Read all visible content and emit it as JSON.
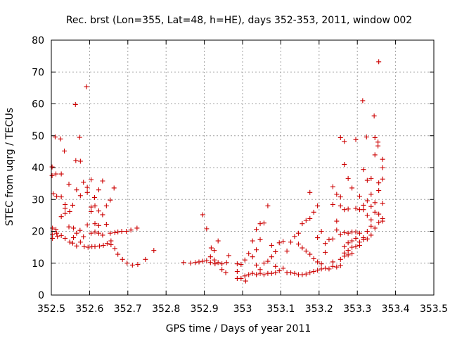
{
  "chart_data": {
    "type": "scatter",
    "title": "Rec. brst (Lon=355, Lat=48, h=HE), days 352-353, 2011, window 002",
    "xlabel": "GPS time / Days of year 2011",
    "ylabel": "STEC from uqrg / TECUs",
    "xlim": [
      352.5,
      353.5
    ],
    "ylim": [
      0,
      80
    ],
    "grid": true,
    "marker": "+",
    "color": "#cc0000",
    "xticks": [
      {
        "value": 352.5,
        "label": "352.5"
      },
      {
        "value": 352.6,
        "label": "352.6"
      },
      {
        "value": 352.7,
        "label": "352.7"
      },
      {
        "value": 352.8,
        "label": "352.8"
      },
      {
        "value": 352.9,
        "label": "352.9"
      },
      {
        "value": 353.0,
        "label": "353"
      },
      {
        "value": 353.1,
        "label": "353.1"
      },
      {
        "value": 353.2,
        "label": "353.2"
      },
      {
        "value": 353.3,
        "label": "353.3"
      },
      {
        "value": 353.4,
        "label": "353.4"
      },
      {
        "value": 353.5,
        "label": "353.5"
      }
    ],
    "yticks": [
      {
        "value": 0,
        "label": "0"
      },
      {
        "value": 10,
        "label": "10"
      },
      {
        "value": 20,
        "label": "20"
      },
      {
        "value": 30,
        "label": "30"
      },
      {
        "value": 40,
        "label": "40"
      },
      {
        "value": 50,
        "label": "50"
      },
      {
        "value": 60,
        "label": "60"
      },
      {
        "value": 70,
        "label": "70"
      },
      {
        "value": 80,
        "label": "80"
      }
    ],
    "points": [
      [
        352.502,
        40.2
      ],
      [
        352.502,
        37.5
      ],
      [
        352.505,
        31.8
      ],
      [
        352.503,
        21.0
      ],
      [
        352.503,
        19.0
      ],
      [
        352.503,
        17.8
      ],
      [
        352.51,
        49.6
      ],
      [
        352.512,
        38.0
      ],
      [
        352.514,
        31.0
      ],
      [
        352.512,
        20.6
      ],
      [
        352.514,
        19.4
      ],
      [
        352.516,
        18.4
      ],
      [
        352.524,
        49.0
      ],
      [
        352.526,
        38.0
      ],
      [
        352.526,
        30.8
      ],
      [
        352.526,
        24.6
      ],
      [
        352.526,
        18.7
      ],
      [
        352.534,
        45.2
      ],
      [
        352.536,
        28.4
      ],
      [
        352.536,
        27.2
      ],
      [
        352.536,
        25.6
      ],
      [
        352.536,
        17.8
      ],
      [
        352.546,
        34.8
      ],
      [
        352.548,
        26.2
      ],
      [
        352.546,
        21.4
      ],
      [
        352.548,
        16.6
      ],
      [
        352.556,
        28.2
      ],
      [
        352.558,
        21.0
      ],
      [
        352.558,
        18.0
      ],
      [
        352.556,
        16.3
      ],
      [
        352.563,
        59.8
      ],
      [
        352.564,
        42.2
      ],
      [
        352.566,
        33.0
      ],
      [
        352.566,
        19.4
      ],
      [
        352.566,
        15.4
      ],
      [
        352.574,
        49.5
      ],
      [
        352.576,
        42.0
      ],
      [
        352.576,
        31.2
      ],
      [
        352.575,
        20.3
      ],
      [
        352.576,
        16.6
      ],
      [
        352.584,
        35.4
      ],
      [
        352.584,
        18.3
      ],
      [
        352.586,
        15.2
      ],
      [
        352.592,
        65.4
      ],
      [
        352.594,
        33.8
      ],
      [
        352.594,
        32.2
      ],
      [
        352.594,
        22.0
      ],
      [
        352.596,
        15.0
      ],
      [
        352.604,
        36.2
      ],
      [
        352.604,
        27.6
      ],
      [
        352.604,
        26.2
      ],
      [
        352.604,
        19.4
      ],
      [
        352.606,
        15.2
      ],
      [
        352.613,
        30.6
      ],
      [
        352.614,
        28.0
      ],
      [
        352.614,
        22.4
      ],
      [
        352.614,
        19.8
      ],
      [
        352.614,
        15.2
      ],
      [
        352.624,
        33.0
      ],
      [
        352.624,
        26.4
      ],
      [
        352.624,
        21.8
      ],
      [
        352.624,
        19.4
      ],
      [
        352.626,
        15.4
      ],
      [
        352.634,
        35.8
      ],
      [
        352.634,
        25.2
      ],
      [
        352.634,
        18.8
      ],
      [
        352.636,
        15.6
      ],
      [
        352.644,
        28.0
      ],
      [
        352.644,
        22.2
      ],
      [
        352.646,
        16.2
      ],
      [
        352.654,
        29.8
      ],
      [
        352.654,
        19.4
      ],
      [
        352.656,
        17.0
      ],
      [
        352.656,
        15.8
      ],
      [
        352.664,
        33.6
      ],
      [
        352.666,
        19.6
      ],
      [
        352.666,
        14.6
      ],
      [
        352.674,
        19.8
      ],
      [
        352.674,
        12.8
      ],
      [
        352.684,
        20.0
      ],
      [
        352.686,
        11.2
      ],
      [
        352.696,
        20.0
      ],
      [
        352.698,
        10.0
      ],
      [
        352.708,
        20.4
      ],
      [
        352.712,
        9.4
      ],
      [
        352.724,
        21.0
      ],
      [
        352.726,
        9.6
      ],
      [
        352.746,
        11.2
      ],
      [
        352.768,
        14.0
      ],
      [
        352.846,
        10.2
      ],
      [
        352.864,
        10.0
      ],
      [
        352.876,
        10.2
      ],
      [
        352.886,
        10.4
      ],
      [
        352.896,
        25.2
      ],
      [
        352.896,
        10.6
      ],
      [
        352.906,
        20.8
      ],
      [
        352.906,
        10.8
      ],
      [
        352.916,
        12.0
      ],
      [
        352.918,
        14.8
      ],
      [
        352.916,
        10.2
      ],
      [
        352.926,
        14.0
      ],
      [
        352.926,
        11.0
      ],
      [
        352.928,
        9.8
      ],
      [
        352.936,
        17.0
      ],
      [
        352.936,
        10.2
      ],
      [
        352.946,
        9.8
      ],
      [
        352.946,
        8.0
      ],
      [
        352.956,
        7.0
      ],
      [
        352.958,
        10.2
      ],
      [
        352.964,
        12.4
      ],
      [
        352.986,
        9.8
      ],
      [
        352.986,
        7.4
      ],
      [
        352.986,
        5.2
      ],
      [
        352.996,
        9.6
      ],
      [
        352.996,
        5.2
      ],
      [
        353.006,
        11.0
      ],
      [
        353.006,
        6.0
      ],
      [
        353.008,
        4.4
      ],
      [
        353.016,
        13.0
      ],
      [
        353.016,
        6.4
      ],
      [
        353.026,
        17.0
      ],
      [
        353.026,
        12.0
      ],
      [
        353.026,
        6.8
      ],
      [
        353.036,
        20.6
      ],
      [
        353.036,
        14.2
      ],
      [
        353.036,
        9.4
      ],
      [
        353.036,
        6.4
      ],
      [
        353.046,
        22.4
      ],
      [
        353.046,
        17.4
      ],
      [
        353.046,
        8.0
      ],
      [
        353.046,
        6.8
      ],
      [
        353.056,
        22.6
      ],
      [
        353.056,
        10.0
      ],
      [
        353.056,
        6.4
      ],
      [
        353.066,
        28.0
      ],
      [
        353.066,
        10.6
      ],
      [
        353.066,
        6.8
      ],
      [
        353.076,
        15.6
      ],
      [
        353.076,
        12.0
      ],
      [
        353.076,
        6.8
      ],
      [
        353.086,
        13.6
      ],
      [
        353.086,
        9.0
      ],
      [
        353.086,
        7.0
      ],
      [
        353.096,
        16.4
      ],
      [
        353.096,
        7.6
      ],
      [
        353.106,
        16.8
      ],
      [
        353.106,
        8.4
      ],
      [
        353.116,
        13.8
      ],
      [
        353.116,
        7.0
      ],
      [
        353.126,
        16.6
      ],
      [
        353.126,
        7.0
      ],
      [
        353.136,
        18.4
      ],
      [
        353.136,
        6.8
      ],
      [
        353.146,
        19.4
      ],
      [
        353.146,
        16.0
      ],
      [
        353.146,
        6.4
      ],
      [
        353.156,
        22.4
      ],
      [
        353.156,
        14.8
      ],
      [
        353.156,
        6.4
      ],
      [
        353.166,
        23.4
      ],
      [
        353.166,
        13.8
      ],
      [
        353.166,
        6.6
      ],
      [
        353.176,
        32.2
      ],
      [
        353.176,
        24.0
      ],
      [
        353.176,
        12.8
      ],
      [
        353.176,
        7.0
      ],
      [
        353.186,
        26.0
      ],
      [
        353.186,
        11.4
      ],
      [
        353.186,
        7.4
      ],
      [
        353.196,
        28.0
      ],
      [
        353.196,
        18.0
      ],
      [
        353.196,
        10.4
      ],
      [
        353.196,
        7.8
      ],
      [
        353.206,
        20.0
      ],
      [
        353.206,
        9.8
      ],
      [
        353.206,
        8.2
      ],
      [
        353.216,
        16.2
      ],
      [
        353.216,
        13.4
      ],
      [
        353.216,
        8.4
      ],
      [
        353.226,
        17.4
      ],
      [
        353.226,
        8.2
      ],
      [
        353.236,
        34.0
      ],
      [
        353.236,
        28.4
      ],
      [
        353.236,
        17.6
      ],
      [
        353.236,
        10.4
      ],
      [
        353.236,
        9.0
      ],
      [
        353.246,
        31.6
      ],
      [
        353.246,
        23.2
      ],
      [
        353.246,
        20.4
      ],
      [
        353.246,
        8.8
      ],
      [
        353.256,
        49.4
      ],
      [
        353.256,
        30.8
      ],
      [
        353.256,
        28.0
      ],
      [
        353.256,
        19.0
      ],
      [
        353.256,
        11.2
      ],
      [
        353.256,
        9.2
      ],
      [
        353.266,
        48.2
      ],
      [
        353.266,
        41.0
      ],
      [
        353.266,
        26.8
      ],
      [
        353.266,
        19.6
      ],
      [
        353.266,
        15.2
      ],
      [
        353.266,
        13.2
      ],
      [
        353.266,
        12.2
      ],
      [
        353.276,
        36.6
      ],
      [
        353.276,
        27.0
      ],
      [
        353.276,
        19.4
      ],
      [
        353.276,
        16.4
      ],
      [
        353.276,
        14.0
      ],
      [
        353.276,
        12.6
      ],
      [
        353.286,
        33.6
      ],
      [
        353.286,
        19.8
      ],
      [
        353.286,
        17.0
      ],
      [
        353.286,
        15.0
      ],
      [
        353.286,
        13.0
      ],
      [
        353.296,
        48.8
      ],
      [
        353.296,
        27.2
      ],
      [
        353.296,
        19.8
      ],
      [
        353.296,
        17.8
      ],
      [
        353.296,
        15.2
      ],
      [
        353.306,
        31.0
      ],
      [
        353.306,
        26.8
      ],
      [
        353.306,
        19.4
      ],
      [
        353.306,
        16.6
      ],
      [
        353.306,
        15.6
      ],
      [
        353.314,
        61.0
      ],
      [
        353.316,
        39.4
      ],
      [
        353.316,
        28.2
      ],
      [
        353.316,
        26.8
      ],
      [
        353.316,
        18.0
      ],
      [
        353.316,
        17.4
      ],
      [
        353.324,
        49.6
      ],
      [
        353.326,
        36.0
      ],
      [
        353.326,
        29.6
      ],
      [
        353.326,
        25.0
      ],
      [
        353.326,
        20.0
      ],
      [
        353.326,
        17.6
      ],
      [
        353.336,
        36.6
      ],
      [
        353.336,
        31.6
      ],
      [
        353.336,
        27.8
      ],
      [
        353.336,
        23.6
      ],
      [
        353.336,
        21.6
      ],
      [
        353.336,
        18.8
      ],
      [
        353.344,
        56.2
      ],
      [
        353.346,
        49.4
      ],
      [
        353.346,
        44.0
      ],
      [
        353.346,
        29.0
      ],
      [
        353.346,
        26.0
      ],
      [
        353.346,
        21.0
      ],
      [
        353.354,
        48.0
      ],
      [
        353.354,
        46.8
      ],
      [
        353.356,
        35.2
      ],
      [
        353.356,
        32.8
      ],
      [
        353.356,
        25.4
      ],
      [
        353.356,
        22.8
      ],
      [
        353.356,
        73.2
      ],
      [
        353.366,
        42.6
      ],
      [
        353.366,
        40.0
      ],
      [
        353.366,
        36.4
      ],
      [
        353.366,
        28.8
      ],
      [
        353.366,
        24.0
      ],
      [
        353.366,
        23.2
      ]
    ]
  }
}
